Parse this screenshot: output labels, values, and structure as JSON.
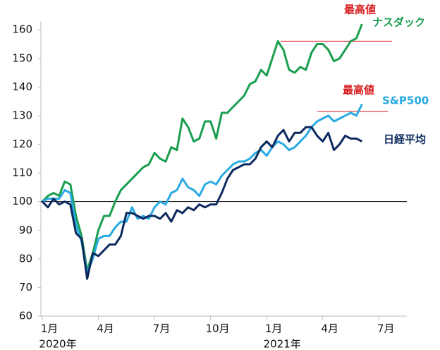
{
  "chart_data": {
    "type": "line",
    "x": [
      0,
      0.3,
      0.6,
      0.9,
      1.2,
      1.5,
      1.8,
      2.1,
      2.4,
      2.7,
      3,
      3.3,
      3.6,
      3.9,
      4.2,
      4.5,
      4.8,
      5.1,
      5.4,
      5.7,
      6,
      6.3,
      6.6,
      6.9,
      7.2,
      7.5,
      7.8,
      8.1,
      8.4,
      8.7,
      9,
      9.3,
      9.6,
      9.9,
      10.2,
      10.5,
      10.8,
      11.1,
      11.4,
      11.7,
      12,
      12.3,
      12.6,
      12.9,
      13.2,
      13.5,
      13.8,
      14.1,
      14.4,
      14.7,
      15,
      15.3,
      15.6,
      15.9,
      16.2,
      16.5,
      16.8,
      17.1
    ],
    "series": [
      {
        "name": "ナスダック",
        "color": "#1a9e4f",
        "values": [
          100,
          102,
          103,
          102,
          107,
          106,
          95,
          88,
          76,
          82,
          90,
          95,
          95,
          100,
          104,
          106,
          108,
          110,
          112,
          113,
          117,
          115,
          114,
          119,
          118,
          129,
          126,
          121,
          122,
          128,
          128,
          122,
          131,
          131,
          133,
          135,
          137,
          141,
          142,
          146,
          144,
          150,
          156,
          153,
          146,
          145,
          147,
          146,
          152,
          155,
          155,
          153,
          149,
          150,
          153,
          156,
          157,
          162
        ]
      },
      {
        "name": "S&P500",
        "color": "#29aae2",
        "values": [
          100,
          101,
          101,
          101,
          104,
          103,
          92,
          86,
          75,
          80,
          87,
          88,
          88,
          91,
          93,
          93,
          98,
          94,
          95,
          94,
          98,
          100,
          99,
          103,
          104,
          108,
          105,
          104,
          102,
          106,
          107,
          106,
          109,
          111,
          113,
          114,
          114,
          115,
          117,
          118,
          116,
          119,
          121,
          120,
          118,
          119,
          121,
          123,
          126,
          128,
          129,
          130,
          128,
          129,
          130,
          131,
          130,
          134
        ]
      },
      {
        "name": "日経平均",
        "color": "#0d2a5e",
        "values": [
          100,
          98,
          101,
          99,
          100,
          99,
          89,
          87,
          73,
          82,
          81,
          83,
          85,
          85,
          88,
          96,
          96,
          95,
          94,
          95,
          95,
          94,
          96,
          93,
          97,
          96,
          98,
          97,
          99,
          98,
          99,
          99,
          103,
          108,
          111,
          112,
          113,
          113,
          115,
          119,
          121,
          119,
          123,
          125,
          121,
          124,
          124,
          126,
          126,
          123,
          121,
          124,
          118,
          120,
          123,
          122,
          122,
          121
        ]
      }
    ],
    "xlim": [
      0,
      19.5
    ],
    "xticks": [
      {
        "value": 0,
        "label": "1月"
      },
      {
        "value": 3,
        "label": "4月"
      },
      {
        "value": 6,
        "label": "7月"
      },
      {
        "value": 9,
        "label": "10月"
      },
      {
        "value": 12,
        "label": "1月"
      },
      {
        "value": 15,
        "label": "4月"
      },
      {
        "value": 18,
        "label": "7月"
      }
    ],
    "year_labels": [
      {
        "value": 0,
        "label": "2020年"
      },
      {
        "value": 12,
        "label": "2021年"
      }
    ],
    "ylim": [
      60,
      163
    ],
    "yticks": [
      60,
      70,
      80,
      90,
      100,
      110,
      120,
      130,
      140,
      150,
      160
    ],
    "reference_lines": [
      {
        "value": 100,
        "color": "#000000"
      },
      {
        "value": 156,
        "color": "#d7191c",
        "x": [
          12.75,
          18.7
        ],
        "label": "最高値"
      },
      {
        "value": 131.5,
        "color": "#d7191c",
        "x": [
          14.7,
          18.5
        ],
        "label": "最高値"
      }
    ]
  }
}
